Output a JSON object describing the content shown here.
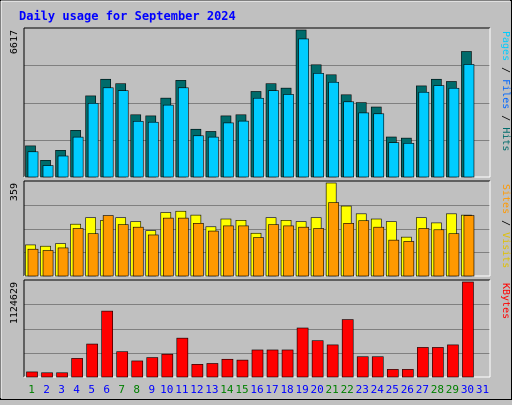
{
  "title": "Daily usage for September 2024",
  "colors": {
    "title": "#0000ff",
    "background": "#c0c0c0",
    "panel": "#c0c0c0",
    "hits": "#00ccff",
    "files": "#0066ff",
    "pages": "#00ccff",
    "hitsShadow": "#006666",
    "visits": "#ffff00",
    "sites": "#ff9900",
    "kbytes": "#ff0000",
    "weekday": "#0000ff",
    "weekend": "#008000"
  },
  "days": [
    "1",
    "2",
    "3",
    "4",
    "5",
    "6",
    "7",
    "8",
    "9",
    "10",
    "11",
    "12",
    "13",
    "14",
    "15",
    "16",
    "17",
    "18",
    "19",
    "20",
    "21",
    "22",
    "23",
    "24",
    "25",
    "26",
    "27",
    "28",
    "29",
    "30",
    "31"
  ],
  "weekend_days": [
    1,
    7,
    8,
    14,
    15,
    21,
    22,
    28,
    29
  ],
  "chart_data": [
    {
      "type": "bar",
      "title": "",
      "ylabel": "Pages / Files / Hits",
      "ylabel_parts": [
        "Pages",
        "Files",
        "Hits"
      ],
      "max_label": "6617",
      "ylim": [
        0,
        6617
      ],
      "grid": true,
      "series": [
        {
          "name": "Hits",
          "values": [
            1400,
            750,
            1200,
            2100,
            3650,
            4400,
            4200,
            2800,
            2750,
            3550,
            4350,
            2150,
            2050,
            2750,
            2800,
            3850,
            4200,
            4000,
            6617,
            5050,
            4600,
            3700,
            3350,
            3150,
            1800,
            1750,
            4100,
            4400,
            4300,
            5650,
            0
          ]
        },
        {
          "name": "Files",
          "values": [
            1270,
            650,
            1080,
            1930,
            3450,
            4150,
            4020,
            2640,
            2600,
            3370,
            4150,
            1990,
            1930,
            2570,
            2650,
            3680,
            4020,
            3850,
            6350,
            4800,
            4400,
            3520,
            3020,
            2980,
            1680,
            1650,
            3950,
            4250,
            4130,
            5200,
            0
          ]
        }
      ]
    },
    {
      "type": "bar",
      "title": "",
      "ylabel": "Sites / Visits",
      "ylabel_parts": [
        "Sites",
        "Visits"
      ],
      "max_label": "359",
      "ylim": [
        0,
        359
      ],
      "grid": true,
      "series": [
        {
          "name": "Visits",
          "values": [
            120,
            115,
            125,
            200,
            225,
            215,
            225,
            210,
            175,
            245,
            250,
            235,
            190,
            220,
            215,
            165,
            225,
            215,
            210,
            225,
            359,
            270,
            240,
            220,
            210,
            150,
            225,
            205,
            240,
            235,
            0
          ]
        },
        {
          "name": "Sites",
          "values": [
            115,
            110,
            120,
            195,
            175,
            245,
            210,
            200,
            170,
            235,
            235,
            215,
            185,
            205,
            205,
            160,
            210,
            205,
            200,
            195,
            295,
            215,
            225,
            200,
            150,
            145,
            195,
            190,
            175,
            245,
            0
          ]
        }
      ]
    },
    {
      "type": "bar",
      "title": "",
      "ylabel": "KBytes",
      "ylabel_parts": [
        "KBytes"
      ],
      "max_label": "1124629",
      "ylim": [
        0,
        1124629
      ],
      "grid": true,
      "series": [
        {
          "name": "KBytes",
          "values": [
            60000,
            50000,
            50000,
            220000,
            390000,
            780000,
            300000,
            190000,
            230000,
            270000,
            460000,
            150000,
            160000,
            210000,
            200000,
            320000,
            320000,
            320000,
            580000,
            430000,
            380000,
            680000,
            240000,
            240000,
            90000,
            90000,
            350000,
            350000,
            380000,
            1124629,
            0
          ]
        }
      ]
    }
  ]
}
